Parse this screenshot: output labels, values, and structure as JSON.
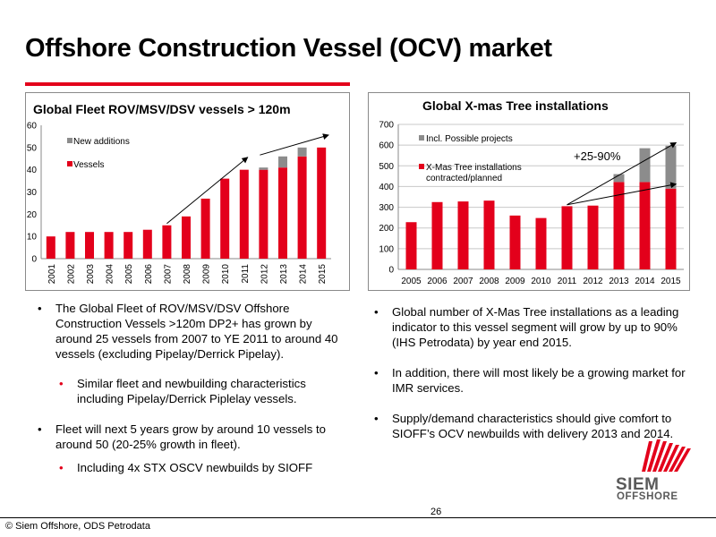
{
  "page": {
    "title": "Offshore Construction Vessel (OCV) market",
    "page_number": "26",
    "footer": "© Siem Offshore, ODS Petrodata",
    "logo_text_1": "SIEM",
    "logo_text_2": "OFFSHORE"
  },
  "colors": {
    "accent": "#e3001b",
    "grey_series": "#8c8c8c",
    "red_series": "#e3001b"
  },
  "chart_data": [
    {
      "type": "bar",
      "stacked": true,
      "title": "Global Fleet ROV/MSV/DSV vessels > 120m",
      "categories": [
        "2001",
        "2002",
        "2003",
        "2004",
        "2005",
        "2006",
        "2007",
        "2008",
        "2009",
        "2010",
        "2011",
        "2012",
        "2013",
        "2014",
        "2015"
      ],
      "series": [
        {
          "name": "Vessels",
          "color": "#e3001b",
          "values": [
            10,
            12,
            12,
            12,
            12,
            13,
            15,
            19,
            27,
            36,
            40,
            40,
            41,
            46,
            50
          ]
        },
        {
          "name": "New additions",
          "color": "#8c8c8c",
          "values": [
            0,
            0,
            0,
            0,
            0,
            0,
            0,
            0,
            0,
            0,
            0,
            1,
            5,
            4,
            0
          ]
        }
      ],
      "ylim": [
        0,
        60
      ],
      "yticks": [
        0,
        10,
        20,
        30,
        40,
        50,
        60
      ],
      "legend_placement": "top-left",
      "grid": false,
      "annotations": []
    },
    {
      "type": "bar",
      "stacked": true,
      "title": "Global X-mas Tree installations",
      "categories": [
        "2005",
        "2006",
        "2007",
        "2008",
        "2009",
        "2010",
        "2011",
        "2012",
        "2013",
        "2014",
        "2015"
      ],
      "series": [
        {
          "name": "X-Mas Tree installations contracted/planned",
          "color": "#e3001b",
          "values": [
            228,
            325,
            328,
            332,
            260,
            248,
            305,
            308,
            422,
            422,
            390
          ]
        },
        {
          "name": "Incl. Possible projects",
          "color": "#8c8c8c",
          "values": [
            0,
            0,
            0,
            0,
            0,
            0,
            0,
            0,
            38,
            163,
            207
          ]
        }
      ],
      "ylim": [
        0,
        700
      ],
      "yticks": [
        0,
        100,
        200,
        300,
        400,
        500,
        600,
        700
      ],
      "legend_placement": "top-left",
      "grid": true,
      "annotations": [
        "+25-90%"
      ]
    }
  ],
  "left_bullets": {
    "b1": "The Global Fleet of ROV/MSV/DSV Offshore Construction Vessels >120m DP2+ has grown by around 25 vessels from 2007 to YE 2011 to around 40 vessels (excluding Pipelay/Derrick Pipelay).",
    "sb1": "Similar fleet and newbuilding characteristics including Pipelay/Derrick Piplelay vessels.",
    "b2": "Fleet will next 5 years grow by around 10 vessels to around 50 (20-25% growth in fleet).",
    "sb2": "Including 4x STX OSCV newbuilds by SIOFF"
  },
  "right_bullets": {
    "b1": "Global number of X-Mas Tree installations as a leading indicator to this vessel segment will grow by up to 90% (IHS Petrodata) by year end 2015.",
    "b2": "In addition, there will most likely be a growing market for IMR services.",
    "b3": "Supply/demand characteristics should give comfort to SIOFF’s OCV newbuilds with delivery 2013 and 2014."
  }
}
